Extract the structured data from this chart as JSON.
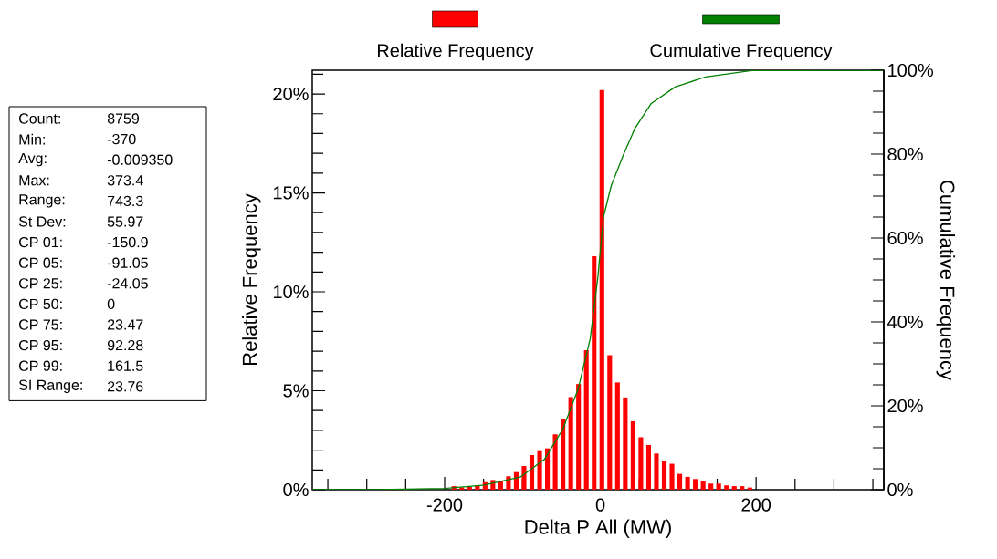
{
  "chart_data": {
    "type": "histogram",
    "xlabel": "Delta P All (MW)",
    "ylabel": "Relative Frequency",
    "y2label": "Cumulative Frequency",
    "bins": [
      -193,
      -183,
      -173,
      -163,
      -153,
      -143,
      -133,
      -123,
      -113,
      -103,
      -93,
      -83,
      -73,
      -63,
      -53,
      -43,
      -33,
      -23,
      -13,
      -3,
      7,
      17,
      27,
      37,
      47,
      57,
      67,
      77,
      87,
      97,
      107,
      117,
      127,
      137,
      147,
      157,
      167,
      177,
      187,
      197
    ],
    "series": [
      {
        "name": "Relative Frequency",
        "color": "#ff0000",
        "values": [
          0.18,
          0.12,
          0.15,
          0.23,
          0.38,
          0.49,
          0.46,
          0.68,
          0.89,
          1.2,
          1.75,
          1.95,
          2.09,
          2.8,
          3.55,
          4.68,
          5.34,
          7.05,
          11.8,
          20.2,
          6.8,
          5.42,
          4.66,
          3.46,
          2.65,
          2.26,
          1.83,
          1.46,
          1.31,
          0.8,
          0.65,
          0.54,
          0.46,
          0.31,
          0.31,
          0.22,
          0.18,
          0.18,
          0.11
        ]
      },
      {
        "name": "Cumulative Frequency",
        "type": "line",
        "axis": "y2",
        "color": "#008000",
        "x": [
          -370,
          -286,
          -200,
          -149,
          -103,
          -72,
          -48,
          -28.5,
          -13,
          -3,
          4,
          14,
          30,
          44,
          65,
          96,
          135,
          194,
          363
        ],
        "values": [
          0,
          0,
          0.3,
          1.1,
          3,
          7.2,
          14.5,
          24,
          36,
          51,
          65,
          72.5,
          80,
          86,
          92,
          96,
          98.4,
          99.9,
          100
        ]
      }
    ],
    "xlim": [
      -370,
      364
    ],
    "xticks": [
      {
        "value": -350,
        "label": null
      },
      {
        "value": -300,
        "label": null
      },
      {
        "value": -250,
        "label": null
      },
      -200,
      {
        "value": -150,
        "label": null
      },
      {
        "value": -100,
        "label": null
      },
      {
        "value": -50,
        "label": null
      },
      0,
      {
        "value": 50,
        "label": null
      },
      {
        "value": 100,
        "label": null
      },
      {
        "value": 150,
        "label": null
      },
      200,
      {
        "value": 250,
        "label": null
      },
      {
        "value": 300,
        "label": null
      },
      {
        "value": 350,
        "label": null
      }
    ],
    "ylim": [
      0,
      21.2
    ],
    "yticks": [
      {
        "value": 0,
        "label": "0%"
      },
      {
        "value": 1,
        "label": null
      },
      {
        "value": 2,
        "label": null
      },
      {
        "value": 3,
        "label": null
      },
      {
        "value": 4,
        "label": null
      },
      {
        "value": 5,
        "label": "5%"
      },
      {
        "value": 6,
        "label": null
      },
      {
        "value": 7,
        "label": null
      },
      {
        "value": 8,
        "label": null
      },
      {
        "value": 9,
        "label": null
      },
      {
        "value": 10,
        "label": "10%"
      },
      {
        "value": 11,
        "label": null
      },
      {
        "value": 12,
        "label": null
      },
      {
        "value": 13,
        "label": null
      },
      {
        "value": 14,
        "label": null
      },
      {
        "value": 15,
        "label": "15%"
      },
      {
        "value": 16,
        "label": null
      },
      {
        "value": 17,
        "label": null
      },
      {
        "value": 18,
        "label": null
      },
      {
        "value": 19,
        "label": null
      },
      {
        "value": 20,
        "label": "20%"
      },
      {
        "value": 21,
        "label": null
      }
    ],
    "y2lim": [
      0,
      100
    ],
    "y2ticks": [
      {
        "value": 0,
        "label": "0%"
      },
      {
        "value": 5,
        "label": null
      },
      {
        "value": 10,
        "label": null
      },
      {
        "value": 15,
        "label": null
      },
      {
        "value": 20,
        "label": "20%"
      },
      {
        "value": 25,
        "label": null
      },
      {
        "value": 30,
        "label": null
      },
      {
        "value": 35,
        "label": null
      },
      {
        "value": 40,
        "label": "40%"
      },
      {
        "value": 45,
        "label": null
      },
      {
        "value": 50,
        "label": null
      },
      {
        "value": 55,
        "label": null
      },
      {
        "value": 60,
        "label": "60%"
      },
      {
        "value": 65,
        "label": null
      },
      {
        "value": 70,
        "label": null
      },
      {
        "value": 75,
        "label": null
      },
      {
        "value": 80,
        "label": "80%"
      },
      {
        "value": 85,
        "label": null
      },
      {
        "value": 90,
        "label": null
      },
      {
        "value": 95,
        "label": null
      },
      {
        "value": 100,
        "label": "100%"
      }
    ],
    "legend": "top",
    "annotations": [
      "Count:",
      "8759",
      "Min:",
      "-370",
      "Avg:",
      "-0.009350",
      "Max:",
      "373.4",
      "Range:",
      "743.3",
      "St Dev:",
      "55.97",
      "CP 01:",
      "-150.9",
      "CP 05:",
      "-91.05",
      "CP 25:",
      "-24.05",
      "CP 50:",
      "0",
      "CP 75:",
      "23.47",
      "CP 95:",
      "92.28",
      "CP 99:",
      "161.5",
      "SI Range:",
      "23.76"
    ]
  }
}
